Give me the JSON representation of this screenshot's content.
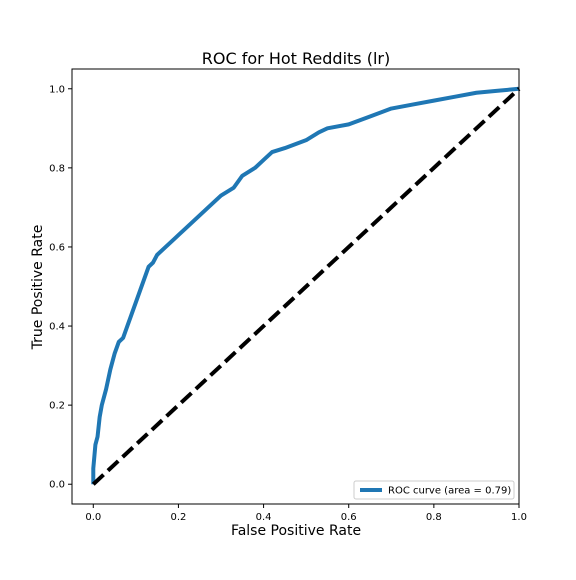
{
  "chart_data": {
    "type": "line",
    "title": "ROC for Hot Reddits (lr)",
    "xlabel": "False Positive Rate",
    "ylabel": "True Positive Rate",
    "xlim": [
      -0.05,
      1.0
    ],
    "ylim": [
      -0.05,
      1.05
    ],
    "xticks": [
      0.0,
      0.2,
      0.4,
      0.6,
      0.8,
      1.0
    ],
    "xtick_labels": [
      "0.0",
      "0.2",
      "0.4",
      "0.6",
      "0.8",
      "1.0"
    ],
    "yticks": [
      0.0,
      0.2,
      0.4,
      0.6,
      0.8,
      1.0
    ],
    "ytick_labels": [
      "0.0",
      "0.2",
      "0.4",
      "0.6",
      "0.8",
      "1.0"
    ],
    "grid": false,
    "legend_position": "lower right",
    "series": [
      {
        "name": "ROC curve (area = 0.79)",
        "color": "#1f77b4",
        "style": "solid",
        "x": [
          0.0,
          0.0,
          0.005,
          0.01,
          0.015,
          0.02,
          0.03,
          0.04,
          0.05,
          0.06,
          0.07,
          0.08,
          0.09,
          0.1,
          0.11,
          0.12,
          0.13,
          0.14,
          0.15,
          0.17,
          0.19,
          0.2,
          0.22,
          0.25,
          0.28,
          0.3,
          0.33,
          0.35,
          0.38,
          0.4,
          0.42,
          0.45,
          0.5,
          0.53,
          0.55,
          0.6,
          0.65,
          0.7,
          0.75,
          0.8,
          0.85,
          0.9,
          0.95,
          1.0
        ],
        "y": [
          0.0,
          0.04,
          0.1,
          0.12,
          0.17,
          0.2,
          0.24,
          0.29,
          0.33,
          0.36,
          0.37,
          0.4,
          0.43,
          0.46,
          0.49,
          0.52,
          0.55,
          0.56,
          0.58,
          0.6,
          0.62,
          0.63,
          0.65,
          0.68,
          0.71,
          0.73,
          0.75,
          0.78,
          0.8,
          0.82,
          0.84,
          0.85,
          0.87,
          0.89,
          0.9,
          0.91,
          0.93,
          0.95,
          0.96,
          0.97,
          0.98,
          0.99,
          0.995,
          1.0
        ]
      },
      {
        "name": "",
        "color": "#000000",
        "style": "dashed",
        "x": [
          0.0,
          1.0
        ],
        "y": [
          0.0,
          1.0
        ]
      }
    ]
  }
}
